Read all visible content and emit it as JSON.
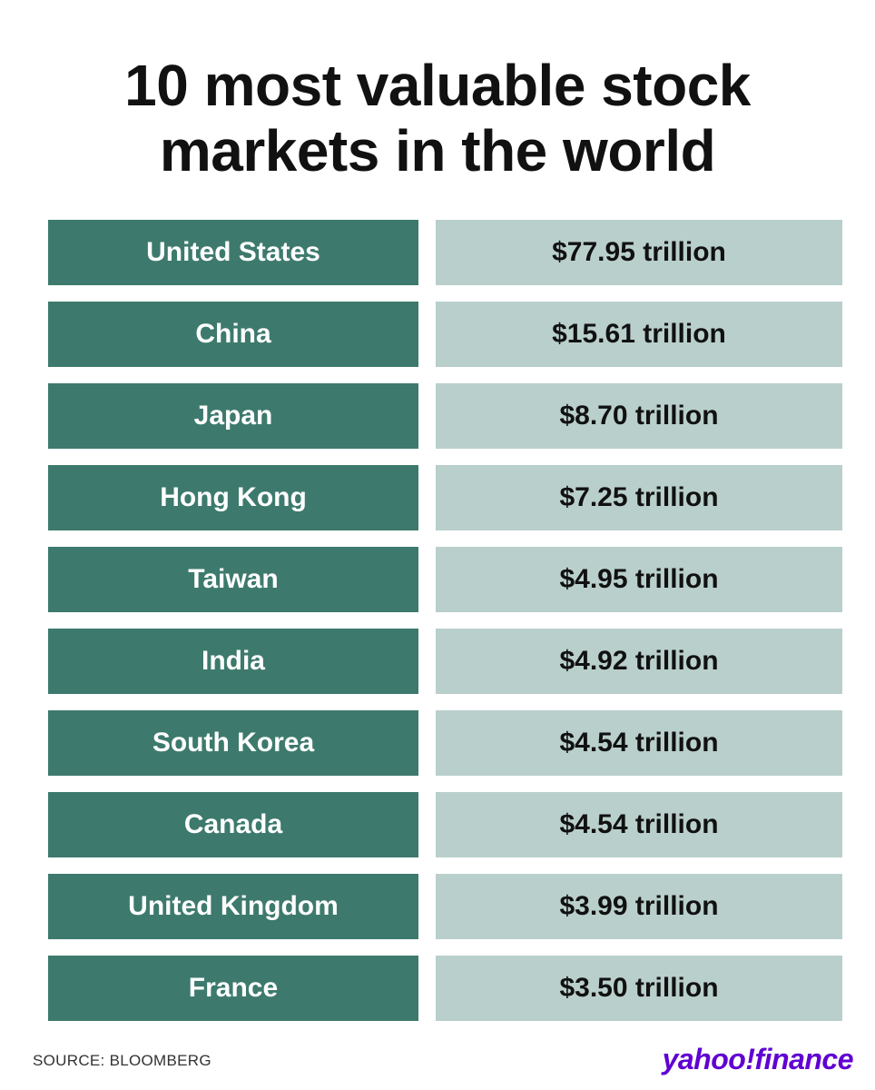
{
  "title": "10 most valuable stock markets in the world",
  "table": {
    "rows": [
      [
        "United States",
        "$77.95 trillion"
      ],
      [
        "China",
        "$15.61 trillion"
      ],
      [
        "Japan",
        "$8.70 trillion"
      ],
      [
        "Hong Kong",
        "$7.25 trillion"
      ],
      [
        "Taiwan",
        "$4.95 trillion"
      ],
      [
        "India",
        "$4.92 trillion"
      ],
      [
        "South Korea",
        "$4.54 trillion"
      ],
      [
        "Canada",
        "$4.54 trillion"
      ],
      [
        "United Kingdom",
        "$3.99 trillion"
      ],
      [
        "France",
        "$3.50 trillion"
      ]
    ]
  },
  "footer": {
    "source": "SOURCE: BLOOMBERG",
    "logo": "yahoo!finance"
  }
}
